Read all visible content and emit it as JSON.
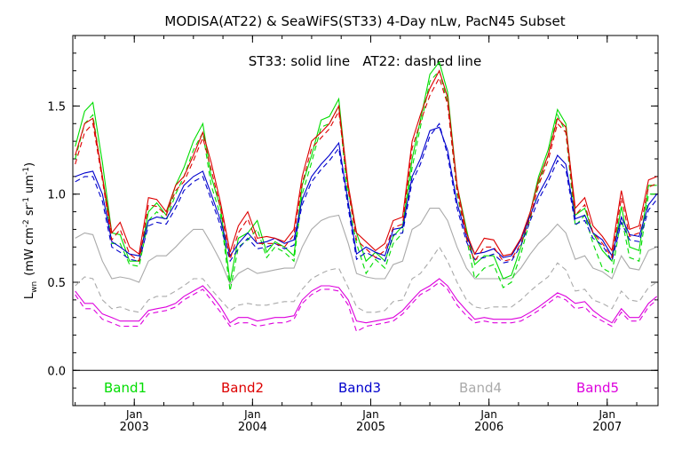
{
  "chart_data": {
    "type": "line",
    "title": "MODISA(AT22) & SeaWiFS(ST33) 4-Day nLw, PacN45 Subset",
    "annotation": "ST33: solid line   AT22: dashed line",
    "ylabel": "L_wn (mW cm^-2 sr^-1 um^-1)",
    "ylabel_main": "L",
    "ylabel_sub": "wn",
    "ylabel_units": "(mW cm",
    "ylabel_units_sup1": "-2",
    "ylabel_units_mid": " sr",
    "ylabel_units_sup2": "-1",
    "ylabel_units_mid2": " um",
    "ylabel_units_sup3": "-1",
    "ylabel_units_end": ")",
    "xlabel": "",
    "ylim": [
      -0.2,
      1.9
    ],
    "xlim": [
      2002.48,
      2007.43
    ],
    "y_ticks": [
      "0.0",
      "0.5",
      "1.0",
      "1.5"
    ],
    "y_tick_values": [
      0.0,
      0.5,
      1.0,
      1.5
    ],
    "x_ticks": [
      {
        "month": "Jan",
        "year": "2003",
        "value": 2003.0
      },
      {
        "month": "Jan",
        "year": "2004",
        "value": 2004.0
      },
      {
        "month": "Jan",
        "year": "2005",
        "value": 2005.0
      },
      {
        "month": "Jan",
        "year": "2006",
        "value": 2006.0
      },
      {
        "month": "Jan",
        "year": "2007",
        "value": 2007.0
      }
    ],
    "zero_line": 0.0,
    "legend_placement": "bottom inside plot",
    "x": [
      2002.5,
      2002.58,
      2002.65,
      2002.73,
      2002.81,
      2002.88,
      2002.96,
      2003.04,
      2003.12,
      2003.19,
      2003.27,
      2003.35,
      2003.42,
      2003.5,
      2003.58,
      2003.65,
      2003.73,
      2003.81,
      2003.88,
      2003.96,
      2004.04,
      2004.12,
      2004.19,
      2004.27,
      2004.35,
      2004.42,
      2004.5,
      2004.58,
      2004.65,
      2004.73,
      2004.81,
      2004.88,
      2004.96,
      2005.04,
      2005.12,
      2005.19,
      2005.27,
      2005.35,
      2005.42,
      2005.5,
      2005.58,
      2005.65,
      2005.73,
      2005.81,
      2005.88,
      2005.96,
      2006.04,
      2006.12,
      2006.19,
      2006.27,
      2006.35,
      2006.42,
      2006.5,
      2006.58,
      2006.65,
      2006.73,
      2006.81,
      2006.88,
      2006.96,
      2007.04,
      2007.12,
      2007.19,
      2007.27,
      2007.35,
      2007.42
    ],
    "series": [
      {
        "name": "Band1",
        "source": "ST33",
        "style": "solid",
        "color": "#00dd00",
        "values": [
          1.27,
          1.47,
          1.52,
          1.18,
          0.78,
          0.77,
          0.62,
          0.62,
          0.9,
          0.95,
          0.88,
          1.05,
          1.15,
          1.3,
          1.4,
          1.1,
          0.92,
          0.5,
          0.75,
          0.78,
          0.85,
          0.67,
          0.73,
          0.7,
          0.65,
          1.05,
          1.22,
          1.42,
          1.44,
          1.54,
          1.02,
          0.78,
          0.62,
          0.67,
          0.62,
          0.76,
          0.82,
          1.2,
          1.42,
          1.68,
          1.75,
          1.58,
          1.05,
          0.8,
          0.6,
          0.65,
          0.65,
          0.52,
          0.54,
          0.7,
          0.9,
          1.1,
          1.25,
          1.48,
          1.4,
          0.88,
          0.92,
          0.78,
          0.68,
          0.62,
          0.93,
          0.7,
          0.68,
          1.05,
          1.05
        ]
      },
      {
        "name": "Band1",
        "source": "AT22",
        "style": "dashed",
        "color": "#00dd00",
        "values": [
          1.2,
          1.4,
          1.45,
          1.1,
          0.72,
          0.72,
          0.6,
          0.59,
          0.85,
          0.9,
          0.85,
          1.0,
          1.1,
          1.25,
          1.35,
          1.05,
          0.88,
          0.45,
          0.7,
          0.74,
          0.8,
          0.64,
          0.7,
          0.67,
          0.62,
          1.0,
          1.18,
          1.38,
          1.4,
          1.5,
          0.95,
          0.72,
          0.55,
          0.63,
          0.58,
          0.72,
          0.78,
          1.15,
          1.38,
          1.64,
          1.7,
          1.52,
          1.0,
          0.75,
          0.52,
          0.58,
          0.6,
          0.47,
          0.5,
          0.66,
          0.86,
          1.06,
          1.22,
          1.45,
          1.35,
          0.82,
          0.88,
          0.72,
          0.58,
          0.55,
          0.87,
          0.64,
          0.62,
          1.0,
          1.0
        ]
      },
      {
        "name": "Band2",
        "source": "ST33",
        "style": "solid",
        "color": "#dd0000",
        "values": [
          1.22,
          1.4,
          1.43,
          1.1,
          0.78,
          0.84,
          0.7,
          0.66,
          0.98,
          0.97,
          0.9,
          1.05,
          1.1,
          1.22,
          1.35,
          1.18,
          0.95,
          0.67,
          0.82,
          0.9,
          0.75,
          0.76,
          0.75,
          0.73,
          0.8,
          1.1,
          1.3,
          1.35,
          1.4,
          1.5,
          1.05,
          0.78,
          0.73,
          0.68,
          0.72,
          0.85,
          0.87,
          1.3,
          1.45,
          1.6,
          1.7,
          1.55,
          1.05,
          0.78,
          0.66,
          0.75,
          0.74,
          0.65,
          0.66,
          0.75,
          0.9,
          1.08,
          1.22,
          1.43,
          1.38,
          0.92,
          0.98,
          0.82,
          0.76,
          0.68,
          1.02,
          0.8,
          0.82,
          1.08,
          1.1
        ]
      },
      {
        "name": "Band2",
        "source": "AT22",
        "style": "dashed",
        "color": "#dd0000",
        "values": [
          1.17,
          1.35,
          1.4,
          1.08,
          0.74,
          0.8,
          0.66,
          0.62,
          0.94,
          0.93,
          0.88,
          1.02,
          1.07,
          1.19,
          1.32,
          1.14,
          0.92,
          0.63,
          0.78,
          0.86,
          0.72,
          0.72,
          0.72,
          0.7,
          0.77,
          1.06,
          1.26,
          1.32,
          1.37,
          1.47,
          1.02,
          0.74,
          0.69,
          0.64,
          0.68,
          0.81,
          0.83,
          1.26,
          1.41,
          1.56,
          1.66,
          1.51,
          1.02,
          0.75,
          0.62,
          0.7,
          0.7,
          0.62,
          0.63,
          0.72,
          0.87,
          1.05,
          1.19,
          1.4,
          1.35,
          0.88,
          0.94,
          0.78,
          0.72,
          0.64,
          0.98,
          0.76,
          0.78,
          1.04,
          1.06
        ]
      },
      {
        "name": "Band3",
        "source": "ST33",
        "style": "solid",
        "color": "#0000cc",
        "values": [
          1.1,
          1.12,
          1.13,
          1.0,
          0.73,
          0.7,
          0.66,
          0.65,
          0.85,
          0.87,
          0.86,
          0.95,
          1.05,
          1.1,
          1.13,
          1.0,
          0.85,
          0.65,
          0.72,
          0.78,
          0.72,
          0.73,
          0.75,
          0.72,
          0.74,
          0.97,
          1.1,
          1.17,
          1.22,
          1.29,
          0.95,
          0.66,
          0.7,
          0.67,
          0.65,
          0.8,
          0.81,
          1.1,
          1.2,
          1.36,
          1.38,
          1.25,
          0.95,
          0.76,
          0.66,
          0.67,
          0.69,
          0.64,
          0.65,
          0.74,
          0.88,
          1.0,
          1.1,
          1.22,
          1.17,
          0.86,
          0.88,
          0.78,
          0.74,
          0.65,
          0.87,
          0.77,
          0.76,
          0.94,
          1.0
        ]
      },
      {
        "name": "Band3",
        "source": "AT22",
        "style": "dashed",
        "color": "#0000cc",
        "values": [
          1.07,
          1.1,
          1.1,
          0.96,
          0.7,
          0.67,
          0.63,
          0.62,
          0.82,
          0.84,
          0.83,
          0.92,
          1.02,
          1.07,
          1.1,
          0.97,
          0.82,
          0.62,
          0.69,
          0.75,
          0.69,
          0.7,
          0.72,
          0.69,
          0.71,
          0.94,
          1.07,
          1.14,
          1.19,
          1.26,
          0.92,
          0.63,
          0.67,
          0.64,
          0.62,
          0.77,
          0.78,
          1.07,
          1.17,
          1.33,
          1.4,
          1.22,
          0.92,
          0.73,
          0.63,
          0.64,
          0.66,
          0.61,
          0.62,
          0.71,
          0.85,
          0.97,
          1.07,
          1.19,
          1.14,
          0.83,
          0.85,
          0.75,
          0.71,
          0.62,
          0.84,
          0.74,
          0.73,
          0.91,
          0.97
        ]
      },
      {
        "name": "Band4",
        "source": "ST33",
        "style": "solid",
        "color": "#aaaaaa",
        "values": [
          0.75,
          0.78,
          0.77,
          0.62,
          0.52,
          0.53,
          0.52,
          0.5,
          0.62,
          0.65,
          0.65,
          0.7,
          0.75,
          0.8,
          0.8,
          0.72,
          0.62,
          0.49,
          0.55,
          0.58,
          0.55,
          0.56,
          0.57,
          0.58,
          0.58,
          0.7,
          0.8,
          0.85,
          0.87,
          0.88,
          0.72,
          0.55,
          0.53,
          0.52,
          0.52,
          0.6,
          0.62,
          0.8,
          0.83,
          0.92,
          0.92,
          0.85,
          0.7,
          0.58,
          0.52,
          0.52,
          0.52,
          0.52,
          0.52,
          0.58,
          0.66,
          0.72,
          0.77,
          0.83,
          0.78,
          0.63,
          0.65,
          0.58,
          0.56,
          0.52,
          0.65,
          0.58,
          0.57,
          0.68,
          0.7
        ]
      },
      {
        "name": "Band4",
        "source": "AT22",
        "style": "dashed",
        "color": "#aaaaaa",
        "values": [
          0.48,
          0.53,
          0.52,
          0.4,
          0.35,
          0.36,
          0.34,
          0.33,
          0.4,
          0.42,
          0.42,
          0.45,
          0.48,
          0.52,
          0.52,
          0.46,
          0.4,
          0.34,
          0.37,
          0.38,
          0.37,
          0.37,
          0.38,
          0.39,
          0.39,
          0.46,
          0.52,
          0.55,
          0.57,
          0.58,
          0.47,
          0.36,
          0.33,
          0.33,
          0.34,
          0.39,
          0.4,
          0.52,
          0.55,
          0.62,
          0.7,
          0.62,
          0.5,
          0.4,
          0.36,
          0.35,
          0.36,
          0.36,
          0.36,
          0.4,
          0.45,
          0.49,
          0.53,
          0.61,
          0.57,
          0.45,
          0.46,
          0.4,
          0.38,
          0.35,
          0.45,
          0.4,
          0.39,
          0.47,
          0.5
        ]
      },
      {
        "name": "Band5",
        "source": "ST33",
        "style": "solid",
        "color": "#dd00dd",
        "values": [
          0.45,
          0.38,
          0.38,
          0.32,
          0.3,
          0.28,
          0.28,
          0.28,
          0.34,
          0.35,
          0.36,
          0.38,
          0.42,
          0.45,
          0.48,
          0.43,
          0.36,
          0.27,
          0.3,
          0.3,
          0.28,
          0.29,
          0.3,
          0.3,
          0.31,
          0.4,
          0.45,
          0.48,
          0.48,
          0.47,
          0.4,
          0.28,
          0.27,
          0.28,
          0.29,
          0.3,
          0.34,
          0.4,
          0.45,
          0.48,
          0.52,
          0.48,
          0.4,
          0.34,
          0.29,
          0.3,
          0.29,
          0.29,
          0.29,
          0.3,
          0.33,
          0.36,
          0.4,
          0.44,
          0.42,
          0.38,
          0.39,
          0.34,
          0.3,
          0.27,
          0.35,
          0.3,
          0.3,
          0.38,
          0.42
        ]
      },
      {
        "name": "Band5",
        "source": "AT22",
        "style": "dashed",
        "color": "#dd00dd",
        "values": [
          0.43,
          0.35,
          0.35,
          0.29,
          0.27,
          0.25,
          0.25,
          0.25,
          0.32,
          0.33,
          0.34,
          0.36,
          0.4,
          0.43,
          0.46,
          0.4,
          0.33,
          0.25,
          0.27,
          0.27,
          0.25,
          0.26,
          0.27,
          0.27,
          0.29,
          0.38,
          0.43,
          0.46,
          0.46,
          0.45,
          0.37,
          0.22,
          0.25,
          0.26,
          0.27,
          0.28,
          0.32,
          0.38,
          0.43,
          0.46,
          0.5,
          0.46,
          0.37,
          0.31,
          0.27,
          0.28,
          0.27,
          0.27,
          0.27,
          0.28,
          0.31,
          0.34,
          0.38,
          0.42,
          0.4,
          0.35,
          0.36,
          0.31,
          0.28,
          0.25,
          0.33,
          0.28,
          0.28,
          0.36,
          0.4
        ]
      }
    ],
    "legend": [
      {
        "label": "Band1",
        "color": "#00dd00"
      },
      {
        "label": "Band2",
        "color": "#dd0000"
      },
      {
        "label": "Band3",
        "color": "#0000cc"
      },
      {
        "label": "Band4",
        "color": "#aaaaaa"
      },
      {
        "label": "Band5",
        "color": "#dd00dd"
      }
    ]
  }
}
